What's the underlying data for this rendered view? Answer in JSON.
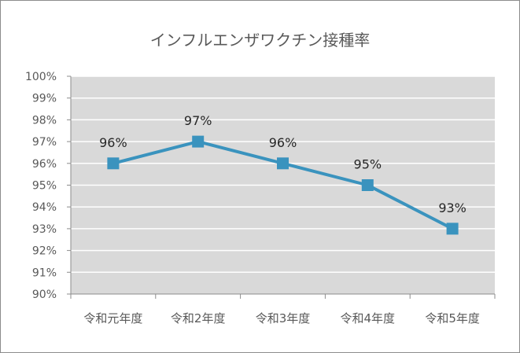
{
  "chart_data": {
    "type": "line",
    "title": "インフルエンザワクチン接種率",
    "categories": [
      "令和元年度",
      "令和2年度",
      "令和3年度",
      "令和4年度",
      "令和5年度"
    ],
    "series": [
      {
        "values": [
          0.96,
          0.97,
          0.96,
          0.95,
          0.93
        ],
        "data_labels": [
          "96%",
          "97%",
          "96%",
          "95%",
          "93%"
        ],
        "color": "#3a93be",
        "marker": "square"
      }
    ],
    "ylim": [
      0.9,
      1.0
    ],
    "ytick_step": 0.01,
    "ytick_labels": [
      "90%",
      "91%",
      "92%",
      "93%",
      "94%",
      "95%",
      "96%",
      "97%",
      "98%",
      "99%",
      "100%"
    ],
    "grid": true,
    "plot_background": "#d9d9d9",
    "gridline_color": "#ffffff",
    "legend": "none"
  }
}
